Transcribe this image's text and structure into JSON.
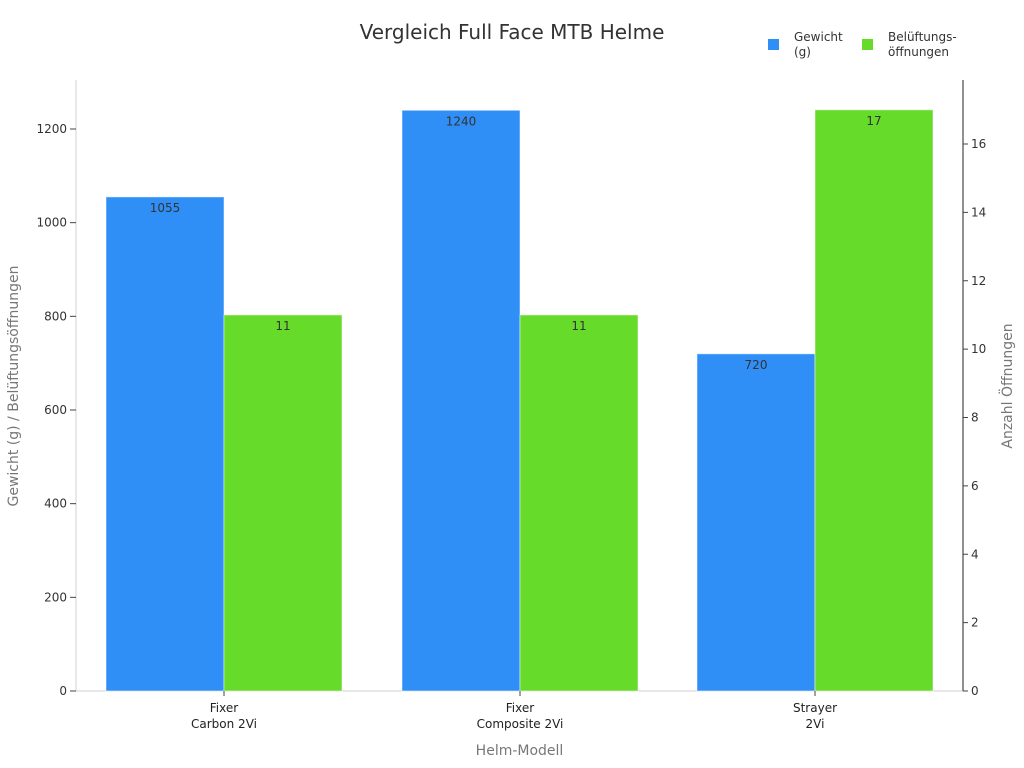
{
  "chart_data": {
    "type": "bar",
    "title": "Vergleich Full Face MTB Helme",
    "xlabel": "Helm-Modell",
    "ylabel": "Gewicht (g) / Belüftungsöffnungen",
    "ylabel_right": "Anzahl Öffnungen",
    "categories": [
      "Fixer\nCarbon 2Vi",
      "Fixer\nComposite 2Vi",
      "Strayer\n2Vi"
    ],
    "category_lines": [
      [
        "Fixer",
        "Carbon 2Vi"
      ],
      [
        "Fixer",
        "Composite 2Vi"
      ],
      [
        "Strayer",
        "2Vi"
      ]
    ],
    "series": [
      {
        "name": "Gewicht (g)",
        "legend_lines": [
          "Gewicht",
          "(g)"
        ],
        "values": [
          1055,
          1240,
          720
        ],
        "color": "#2f8ff7",
        "axis": "left"
      },
      {
        "name": "Belüftungsöffnungen",
        "legend_lines": [
          "Belüftungs-",
          "öffnungen"
        ],
        "values": [
          11,
          11,
          17
        ],
        "color": "#66db29",
        "axis": "right"
      }
    ],
    "ylim": [
      0,
      1300
    ],
    "yticks": [
      0,
      200,
      400,
      600,
      800,
      1000,
      1200
    ],
    "ylim_right": [
      0,
      17.9
    ],
    "yticks_right": [
      0,
      2,
      4,
      6,
      8,
      10,
      12,
      14,
      16
    ],
    "grid": false,
    "legend_position": "top-right",
    "data_labels": true
  },
  "legend": {
    "items": [
      {
        "label": "Gewicht\n(g)",
        "color": "#2f8ff7"
      },
      {
        "label": "Belüftungs-\nöffnungen",
        "color": "#66db29"
      }
    ]
  }
}
